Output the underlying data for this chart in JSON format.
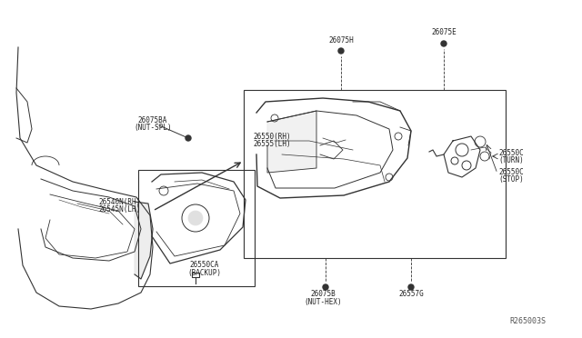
{
  "bg_color": "#ffffff",
  "line_color": "#333333",
  "text_color": "#222222",
  "fig_width": 6.4,
  "fig_height": 3.72,
  "dpi": 100,
  "watermark": "R265003S",
  "labels": {
    "part1_line1": "26550(RH)",
    "part1_line2": "26555(LH)",
    "part2_line1": "26075BA",
    "part2_line2": "(NUT-SPL)",
    "part3_line1": "26540N(RH)",
    "part3_line2": "26545N(LH)",
    "part4_line1": "26550CA",
    "part4_line2": "(BACKUP)",
    "part5": "26075H",
    "part6": "26075E",
    "part7_line1": "26075B",
    "part7_line2": "(NUT-HEX)",
    "part8": "26557G",
    "part9_line1": "26550C",
    "part9_line2": "(TURN)",
    "part10_line1": "26550C",
    "part10_line2": "(STOP)"
  }
}
